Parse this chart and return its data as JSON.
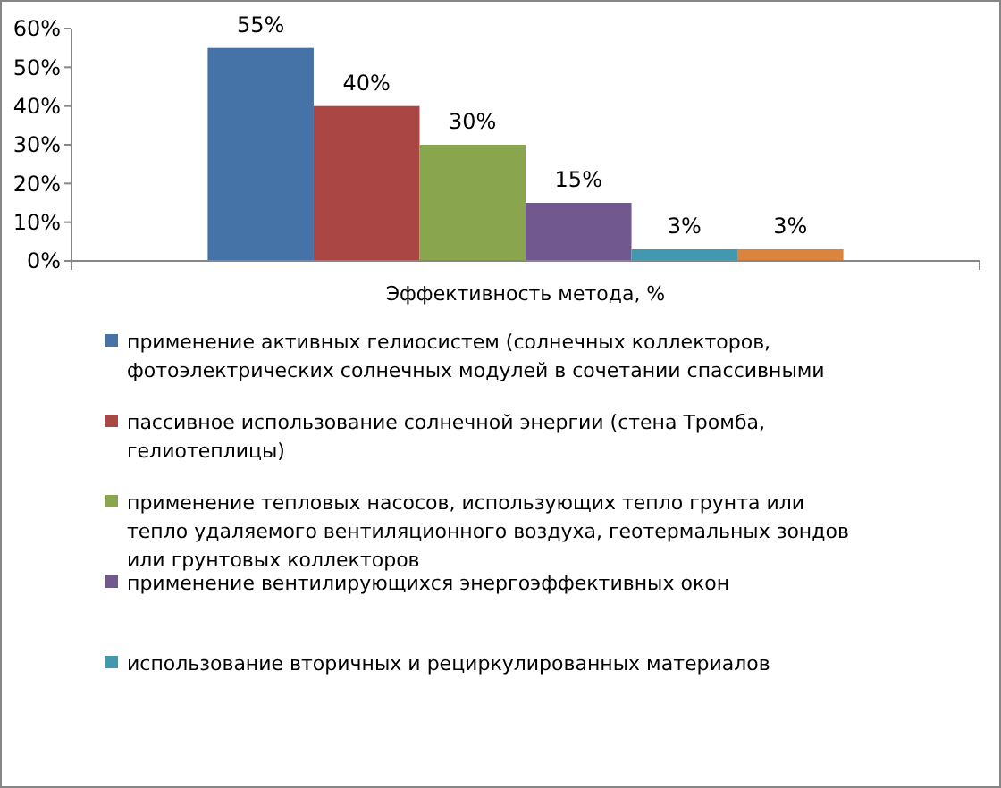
{
  "chart_data": {
    "type": "bar",
    "categories": [
      "Эффективность  метода, %"
    ],
    "series": [
      {
        "name": "применение  активных гелиосистем (солнечных коллекторов, фотоэлектрических  солнечных модулей  в сочетании  спассивными",
        "color": "#4572a7",
        "values": [
          55
        ],
        "value_labels": [
          "55%"
        ]
      },
      {
        "name": "пассивное использование солнечной энергии  (стена Тромба, гелиотеплицы)",
        "color": "#aa4643",
        "values": [
          40
        ],
        "value_labels": [
          "40%"
        ]
      },
      {
        "name": "применение  тепловых насосов, использующих тепло грунта или тепло удаляемого вентиляционного  воздуха, геотермальных зондов или грунтовых коллекторов",
        "color": "#89a54e",
        "values": [
          30
        ],
        "value_labels": [
          "30%"
        ]
      },
      {
        "name": "применение  вентилирующихся  энергоэффективных  окон",
        "color": "#71588f",
        "values": [
          15
        ],
        "value_labels": [
          "15%"
        ]
      },
      {
        "name": "использование вторичных и рециркулированных материалов",
        "color": "#4198af",
        "values": [
          3
        ],
        "value_labels": [
          "3%"
        ]
      },
      {
        "color": "#db843d",
        "values": [
          3
        ],
        "value_labels": [
          "3%"
        ]
      }
    ],
    "ylim": [
      0,
      60
    ],
    "yticks": [
      {
        "value": 0,
        "label": "0%"
      },
      {
        "value": 10,
        "label": "10%"
      },
      {
        "value": 20,
        "label": "20%"
      },
      {
        "value": 30,
        "label": "30%"
      },
      {
        "value": 40,
        "label": "40%"
      },
      {
        "value": 50,
        "label": "50%"
      },
      {
        "value": 60,
        "label": "60%"
      }
    ],
    "grid": false,
    "legend": "bottom"
  }
}
